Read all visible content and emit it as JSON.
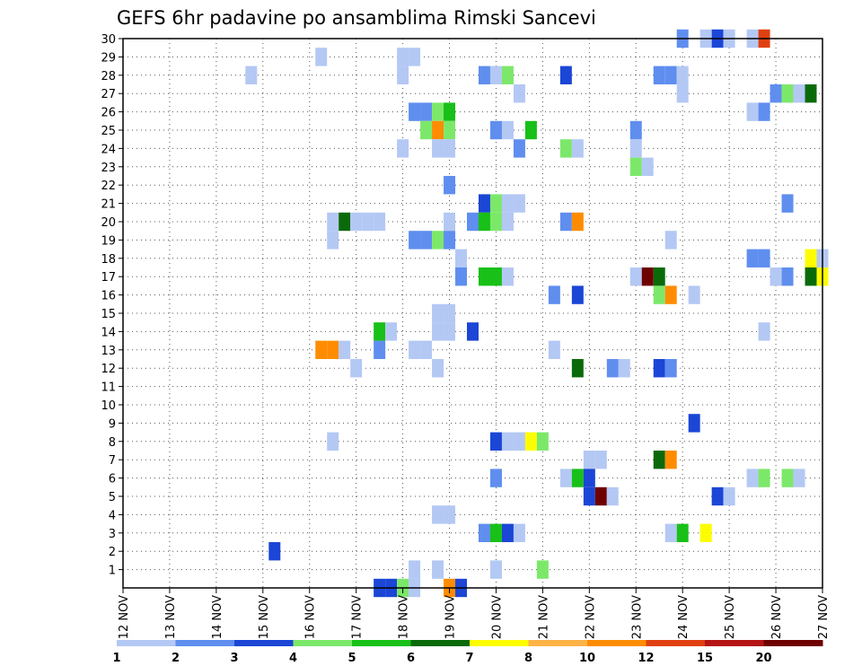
{
  "chart_data": {
    "type": "heatmap",
    "title": "GEFS 6hr padavine po ansamblima Rimski Sancevi",
    "xlabel": "",
    "ylabel": "",
    "x_tick_labels": [
      "12 NOV",
      "13 NOV",
      "14 NOV",
      "15 NOV",
      "16 NOV",
      "17 NOV",
      "18 NOV",
      "19 NOV",
      "20 NOV",
      "21 NOV",
      "22 NOV",
      "23 NOV",
      "24 NOV",
      "25 NOV",
      "26 NOV",
      "27 NOV"
    ],
    "xlim": [
      0,
      60
    ],
    "y_tick_labels": [
      "1",
      "2",
      "3",
      "4",
      "5",
      "6",
      "7",
      "8",
      "9",
      "10",
      "11",
      "12",
      "13",
      "14",
      "15",
      "16",
      "17",
      "18",
      "19",
      "20",
      "21",
      "22",
      "23",
      "24",
      "25",
      "26",
      "27",
      "28",
      "29",
      "30"
    ],
    "ylim": [
      0,
      30
    ],
    "grid": true,
    "colorbar": {
      "labels": [
        "1",
        "2",
        "3",
        "4",
        "5",
        "6",
        "7",
        "8",
        "10",
        "12",
        "15",
        "20"
      ],
      "colors": [
        "#b4c8f4",
        "#5f8eef",
        "#1b46d6",
        "#7ce86a",
        "#18c018",
        "#0a6a0a",
        "#fdfd00",
        "#ffb347",
        "#ff8c00",
        "#e04010",
        "#b41414",
        "#6e0000"
      ],
      "placement": "bottom"
    },
    "cells_legend": "each cell: [ensemble member (y), 6-hour step index from 12 NOV 00UTC (x), color class index into colorbar.colors]",
    "cells": [
      [
        30,
        48,
        1
      ],
      [
        30,
        50,
        0
      ],
      [
        30,
        51,
        2
      ],
      [
        30,
        52,
        0
      ],
      [
        30,
        54,
        0
      ],
      [
        30,
        55,
        9
      ],
      [
        29,
        17,
        0
      ],
      [
        29,
        24,
        0
      ],
      [
        29,
        25,
        0
      ],
      [
        28,
        11,
        0
      ],
      [
        28,
        24,
        0
      ],
      [
        28,
        31,
        1
      ],
      [
        28,
        32,
        0
      ],
      [
        28,
        33,
        3
      ],
      [
        28,
        38,
        2
      ],
      [
        28,
        46,
        1
      ],
      [
        28,
        47,
        1
      ],
      [
        28,
        48,
        0
      ],
      [
        27,
        34,
        0
      ],
      [
        27,
        48,
        0
      ],
      [
        27,
        56,
        1
      ],
      [
        27,
        57,
        3
      ],
      [
        27,
        58,
        0
      ],
      [
        27,
        59,
        5
      ],
      [
        26,
        25,
        1
      ],
      [
        26,
        26,
        1
      ],
      [
        26,
        27,
        3
      ],
      [
        26,
        28,
        4
      ],
      [
        26,
        54,
        0
      ],
      [
        26,
        55,
        1
      ],
      [
        25,
        26,
        3
      ],
      [
        25,
        27,
        8
      ],
      [
        25,
        28,
        3
      ],
      [
        25,
        32,
        1
      ],
      [
        25,
        33,
        0
      ],
      [
        25,
        35,
        4
      ],
      [
        25,
        44,
        1
      ],
      [
        24,
        24,
        0
      ],
      [
        24,
        27,
        0
      ],
      [
        24,
        28,
        0
      ],
      [
        24,
        34,
        1
      ],
      [
        24,
        38,
        3
      ],
      [
        24,
        39,
        0
      ],
      [
        24,
        44,
        0
      ],
      [
        23,
        44,
        3
      ],
      [
        23,
        45,
        0
      ],
      [
        22,
        28,
        1
      ],
      [
        21,
        31,
        2
      ],
      [
        21,
        32,
        3
      ],
      [
        21,
        33,
        0
      ],
      [
        21,
        34,
        0
      ],
      [
        21,
        57,
        1
      ],
      [
        20,
        18,
        0
      ],
      [
        20,
        19,
        5
      ],
      [
        20,
        20,
        0
      ],
      [
        20,
        21,
        0
      ],
      [
        20,
        22,
        0
      ],
      [
        20,
        28,
        0
      ],
      [
        20,
        30,
        1
      ],
      [
        20,
        31,
        4
      ],
      [
        20,
        32,
        3
      ],
      [
        20,
        33,
        0
      ],
      [
        20,
        38,
        1
      ],
      [
        20,
        39,
        8
      ],
      [
        19,
        18,
        0
      ],
      [
        19,
        25,
        1
      ],
      [
        19,
        26,
        1
      ],
      [
        19,
        27,
        3
      ],
      [
        19,
        28,
        1
      ],
      [
        19,
        47,
        0
      ],
      [
        18,
        29,
        0
      ],
      [
        18,
        54,
        1
      ],
      [
        18,
        55,
        1
      ],
      [
        18,
        59,
        6
      ],
      [
        18,
        60,
        0
      ],
      [
        17,
        29,
        1
      ],
      [
        17,
        31,
        4
      ],
      [
        17,
        32,
        4
      ],
      [
        17,
        33,
        0
      ],
      [
        17,
        44,
        0
      ],
      [
        17,
        45,
        11
      ],
      [
        17,
        46,
        5
      ],
      [
        17,
        56,
        0
      ],
      [
        17,
        57,
        1
      ],
      [
        17,
        59,
        5
      ],
      [
        17,
        60,
        6
      ],
      [
        16,
        37,
        1
      ],
      [
        16,
        39,
        2
      ],
      [
        16,
        46,
        3
      ],
      [
        16,
        47,
        8
      ],
      [
        16,
        49,
        0
      ],
      [
        15,
        27,
        0
      ],
      [
        15,
        28,
        0
      ],
      [
        14,
        22,
        4
      ],
      [
        14,
        23,
        0
      ],
      [
        14,
        27,
        0
      ],
      [
        14,
        28,
        0
      ],
      [
        14,
        30,
        2
      ],
      [
        14,
        55,
        0
      ],
      [
        13,
        17,
        8
      ],
      [
        13,
        18,
        8
      ],
      [
        13,
        19,
        0
      ],
      [
        13,
        22,
        1
      ],
      [
        13,
        25,
        0
      ],
      [
        13,
        26,
        0
      ],
      [
        13,
        37,
        0
      ],
      [
        12,
        20,
        0
      ],
      [
        12,
        27,
        0
      ],
      [
        12,
        39,
        5
      ],
      [
        12,
        42,
        1
      ],
      [
        12,
        43,
        0
      ],
      [
        12,
        46,
        2
      ],
      [
        12,
        47,
        1
      ],
      [
        9,
        49,
        2
      ],
      [
        8,
        18,
        0
      ],
      [
        8,
        32,
        2
      ],
      [
        8,
        33,
        0
      ],
      [
        8,
        34,
        0
      ],
      [
        8,
        35,
        6
      ],
      [
        8,
        36,
        3
      ],
      [
        7,
        40,
        0
      ],
      [
        7,
        41,
        0
      ],
      [
        7,
        46,
        5
      ],
      [
        7,
        47,
        8
      ],
      [
        6,
        32,
        1
      ],
      [
        6,
        38,
        0
      ],
      [
        6,
        39,
        4
      ],
      [
        6,
        40,
        2
      ],
      [
        6,
        54,
        0
      ],
      [
        6,
        55,
        3
      ],
      [
        6,
        57,
        3
      ],
      [
        6,
        58,
        0
      ],
      [
        5,
        40,
        2
      ],
      [
        5,
        41,
        11
      ],
      [
        5,
        42,
        0
      ],
      [
        5,
        51,
        2
      ],
      [
        5,
        52,
        0
      ],
      [
        4,
        27,
        0
      ],
      [
        4,
        28,
        0
      ],
      [
        3,
        31,
        1
      ],
      [
        3,
        32,
        4
      ],
      [
        3,
        33,
        2
      ],
      [
        3,
        34,
        0
      ],
      [
        3,
        47,
        0
      ],
      [
        3,
        48,
        4
      ],
      [
        3,
        50,
        6
      ],
      [
        2,
        13,
        2
      ],
      [
        1,
        25,
        0
      ],
      [
        1,
        27,
        0
      ],
      [
        1,
        32,
        0
      ],
      [
        1,
        36,
        3
      ],
      [
        0,
        22,
        2
      ],
      [
        0,
        23,
        2
      ],
      [
        0,
        24,
        3
      ],
      [
        0,
        25,
        0
      ],
      [
        0,
        28,
        8
      ],
      [
        0,
        29,
        2
      ]
    ]
  }
}
